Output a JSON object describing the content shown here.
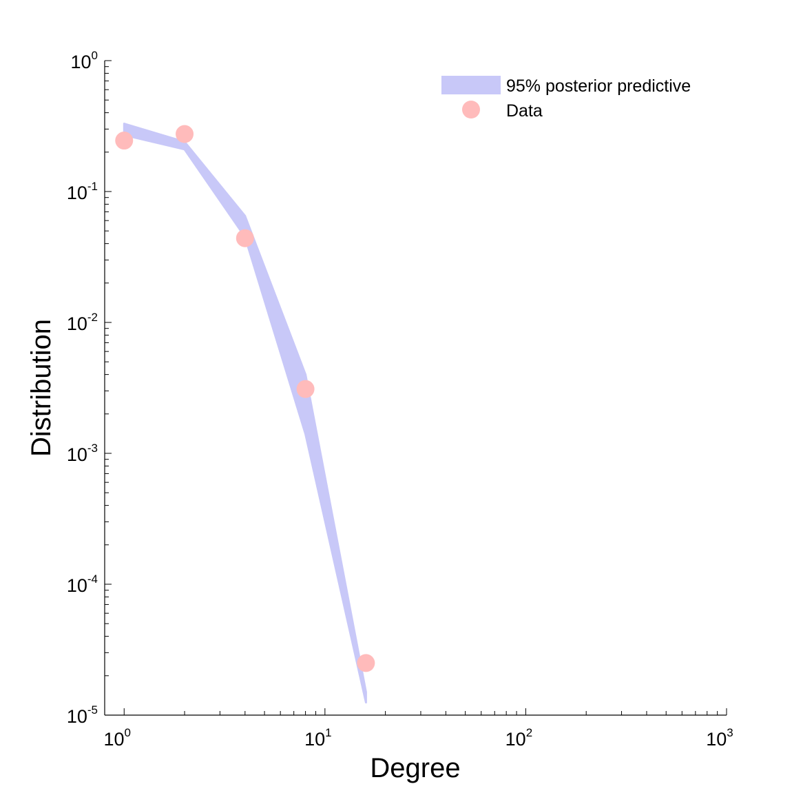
{
  "chart_data": {
    "type": "scatter",
    "title": "",
    "xlabel": "Degree",
    "ylabel": "Distribution",
    "x_scale": "log",
    "y_scale": "log",
    "xlim": [
      0.8,
      1000
    ],
    "ylim": [
      1e-05,
      1
    ],
    "grid": false,
    "legend_position": "top-right",
    "x_ticks": [
      {
        "base": "10",
        "exp": "0",
        "value": 1
      },
      {
        "base": "10",
        "exp": "1",
        "value": 10
      },
      {
        "base": "10",
        "exp": "2",
        "value": 100
      },
      {
        "base": "10",
        "exp": "3",
        "value": 1000
      }
    ],
    "y_ticks": [
      {
        "base": "10",
        "exp": "0",
        "value": 1
      },
      {
        "base": "10",
        "exp": "-1",
        "value": 0.1
      },
      {
        "base": "10",
        "exp": "-2",
        "value": 0.01
      },
      {
        "base": "10",
        "exp": "-3",
        "value": 0.001
      },
      {
        "base": "10",
        "exp": "-4",
        "value": 0.0001
      },
      {
        "base": "10",
        "exp": "-5",
        "value": 1e-05
      }
    ],
    "series": [
      {
        "name": "95% posterior predictive",
        "kind": "band",
        "color": "#c8c8f8",
        "x": [
          1,
          2,
          4,
          8,
          16
        ],
        "lower": [
          0.27,
          0.21,
          0.045,
          0.0014,
          1.25e-05
        ],
        "upper": [
          0.33,
          0.24,
          0.065,
          0.004,
          1.5e-05
        ]
      },
      {
        "name": "Data",
        "kind": "points",
        "color": "#ffbbbb",
        "x": [
          1,
          2,
          4,
          8,
          16
        ],
        "y": [
          0.245,
          0.275,
          0.044,
          0.0031,
          2.5e-05
        ]
      }
    ]
  }
}
